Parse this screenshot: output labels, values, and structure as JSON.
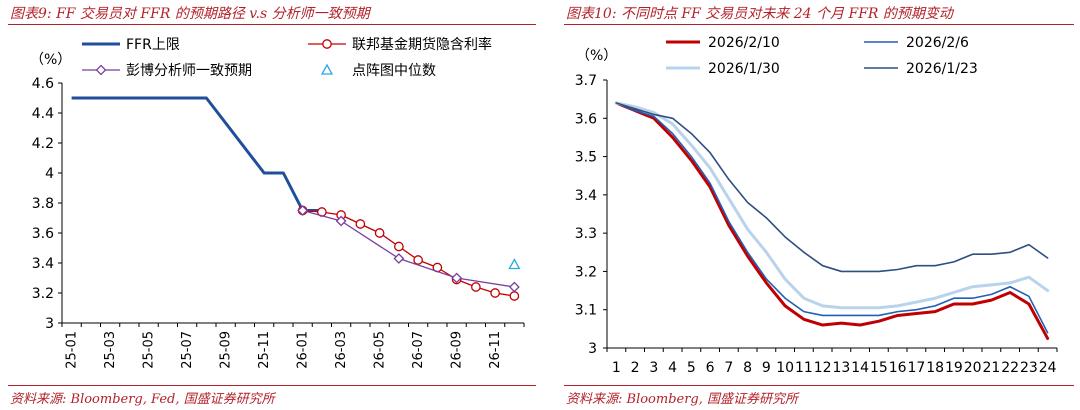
{
  "left": {
    "title": "图表9: FF 交易员对 FFR 的预期路径 v.s 分析师一致预期",
    "source": "资料来源: Bloomberg, Fed, 国盛证券研究所"
  },
  "right": {
    "title": "图表10: 不同时点 FF 交易员对未来 24 个月 FFR 的预期变动",
    "source": "资料来源: Bloomberg, 国盛证券研究所"
  },
  "colors": {
    "accent_red": "#b3222a",
    "ffr_blue": "#1f4e9c",
    "futures_red": "#c00000",
    "consensus_purple": "#7b3fa0",
    "median_cyan": "#2aa8e0",
    "s_2026_2_10": "#c00000",
    "s_2026_2_6": "#1f5fb5",
    "s_2026_1_30": "#b9d3ec",
    "s_2026_1_23": "#2e4f82"
  },
  "chart_data": [
    {
      "type": "line",
      "unit_label": "（%）",
      "x_ticks": [
        "25-01",
        "25-03",
        "25-05",
        "25-07",
        "25-09",
        "25-11",
        "26-01",
        "26-03",
        "26-05",
        "26-07",
        "26-09",
        "26-11"
      ],
      "ylim": [
        3,
        4.6
      ],
      "y_ticks": [
        "3",
        "3.2",
        "3.4",
        "3.6",
        "3.8",
        "4",
        "4.2",
        "4.4",
        "4.6"
      ],
      "grid": false,
      "legend_position": "top",
      "series": [
        {
          "name": "FFR上限",
          "style": "line",
          "color_key": "ffr_blue",
          "x": [
            0,
            7,
            10,
            11,
            12,
            13
          ],
          "y": [
            4.5,
            4.5,
            4.0,
            4.0,
            3.75,
            3.75
          ]
        },
        {
          "name": "联邦基金期货隐含利率",
          "style": "line-circle",
          "color_key": "futures_red",
          "x": [
            12,
            13,
            14,
            15,
            16,
            17,
            18,
            19,
            20,
            21,
            22,
            23
          ],
          "y": [
            3.75,
            3.74,
            3.72,
            3.66,
            3.6,
            3.51,
            3.42,
            3.37,
            3.29,
            3.24,
            3.2,
            3.18
          ]
        },
        {
          "name": "彭博分析师一致预期",
          "style": "line-diamond",
          "color_key": "consensus_purple",
          "x": [
            12,
            14,
            17,
            20,
            23
          ],
          "y": [
            3.75,
            3.68,
            3.43,
            3.3,
            3.24
          ]
        },
        {
          "name": "点阵图中位数",
          "style": "triangle",
          "color_key": "median_cyan",
          "x": [
            23
          ],
          "y": [
            3.39
          ]
        }
      ]
    },
    {
      "type": "line",
      "unit_label": "（%）",
      "categories": [
        "1",
        "2",
        "3",
        "4",
        "5",
        "6",
        "7",
        "8",
        "9",
        "10",
        "11",
        "12",
        "13",
        "14",
        "15",
        "16",
        "17",
        "18",
        "19",
        "20",
        "21",
        "22",
        "23",
        "24"
      ],
      "ylim": [
        3,
        3.7
      ],
      "y_ticks": [
        "3",
        "3.1",
        "3.2",
        "3.3",
        "3.4",
        "3.5",
        "3.6",
        "3.7"
      ],
      "grid": false,
      "legend_position": "top",
      "series": [
        {
          "name": "2026/2/10",
          "color_key": "s_2026_2_10",
          "width": 3,
          "values": [
            3.64,
            3.62,
            3.6,
            3.55,
            3.49,
            3.42,
            3.32,
            3.24,
            3.17,
            3.11,
            3.075,
            3.06,
            3.065,
            3.06,
            3.07,
            3.085,
            3.09,
            3.095,
            3.115,
            3.115,
            3.125,
            3.145,
            3.115,
            3.025
          ]
        },
        {
          "name": "2026/2/6",
          "color_key": "s_2026_2_6",
          "width": 1.6,
          "values": [
            3.64,
            3.62,
            3.605,
            3.56,
            3.5,
            3.43,
            3.33,
            3.25,
            3.18,
            3.13,
            3.095,
            3.085,
            3.085,
            3.085,
            3.085,
            3.095,
            3.1,
            3.11,
            3.13,
            3.13,
            3.14,
            3.16,
            3.135,
            3.04
          ]
        },
        {
          "name": "2026/1/30",
          "color_key": "s_2026_1_30",
          "width": 3,
          "values": [
            3.64,
            3.63,
            3.615,
            3.585,
            3.53,
            3.47,
            3.39,
            3.31,
            3.25,
            3.18,
            3.13,
            3.11,
            3.105,
            3.105,
            3.105,
            3.11,
            3.12,
            3.13,
            3.145,
            3.16,
            3.165,
            3.17,
            3.185,
            3.15
          ]
        },
        {
          "name": "2026/1/23",
          "color_key": "s_2026_1_23",
          "width": 1.6,
          "values": [
            3.64,
            3.625,
            3.61,
            3.6,
            3.56,
            3.51,
            3.44,
            3.38,
            3.34,
            3.29,
            3.25,
            3.215,
            3.2,
            3.2,
            3.2,
            3.205,
            3.215,
            3.215,
            3.225,
            3.245,
            3.245,
            3.25,
            3.27,
            3.235
          ]
        }
      ]
    }
  ]
}
